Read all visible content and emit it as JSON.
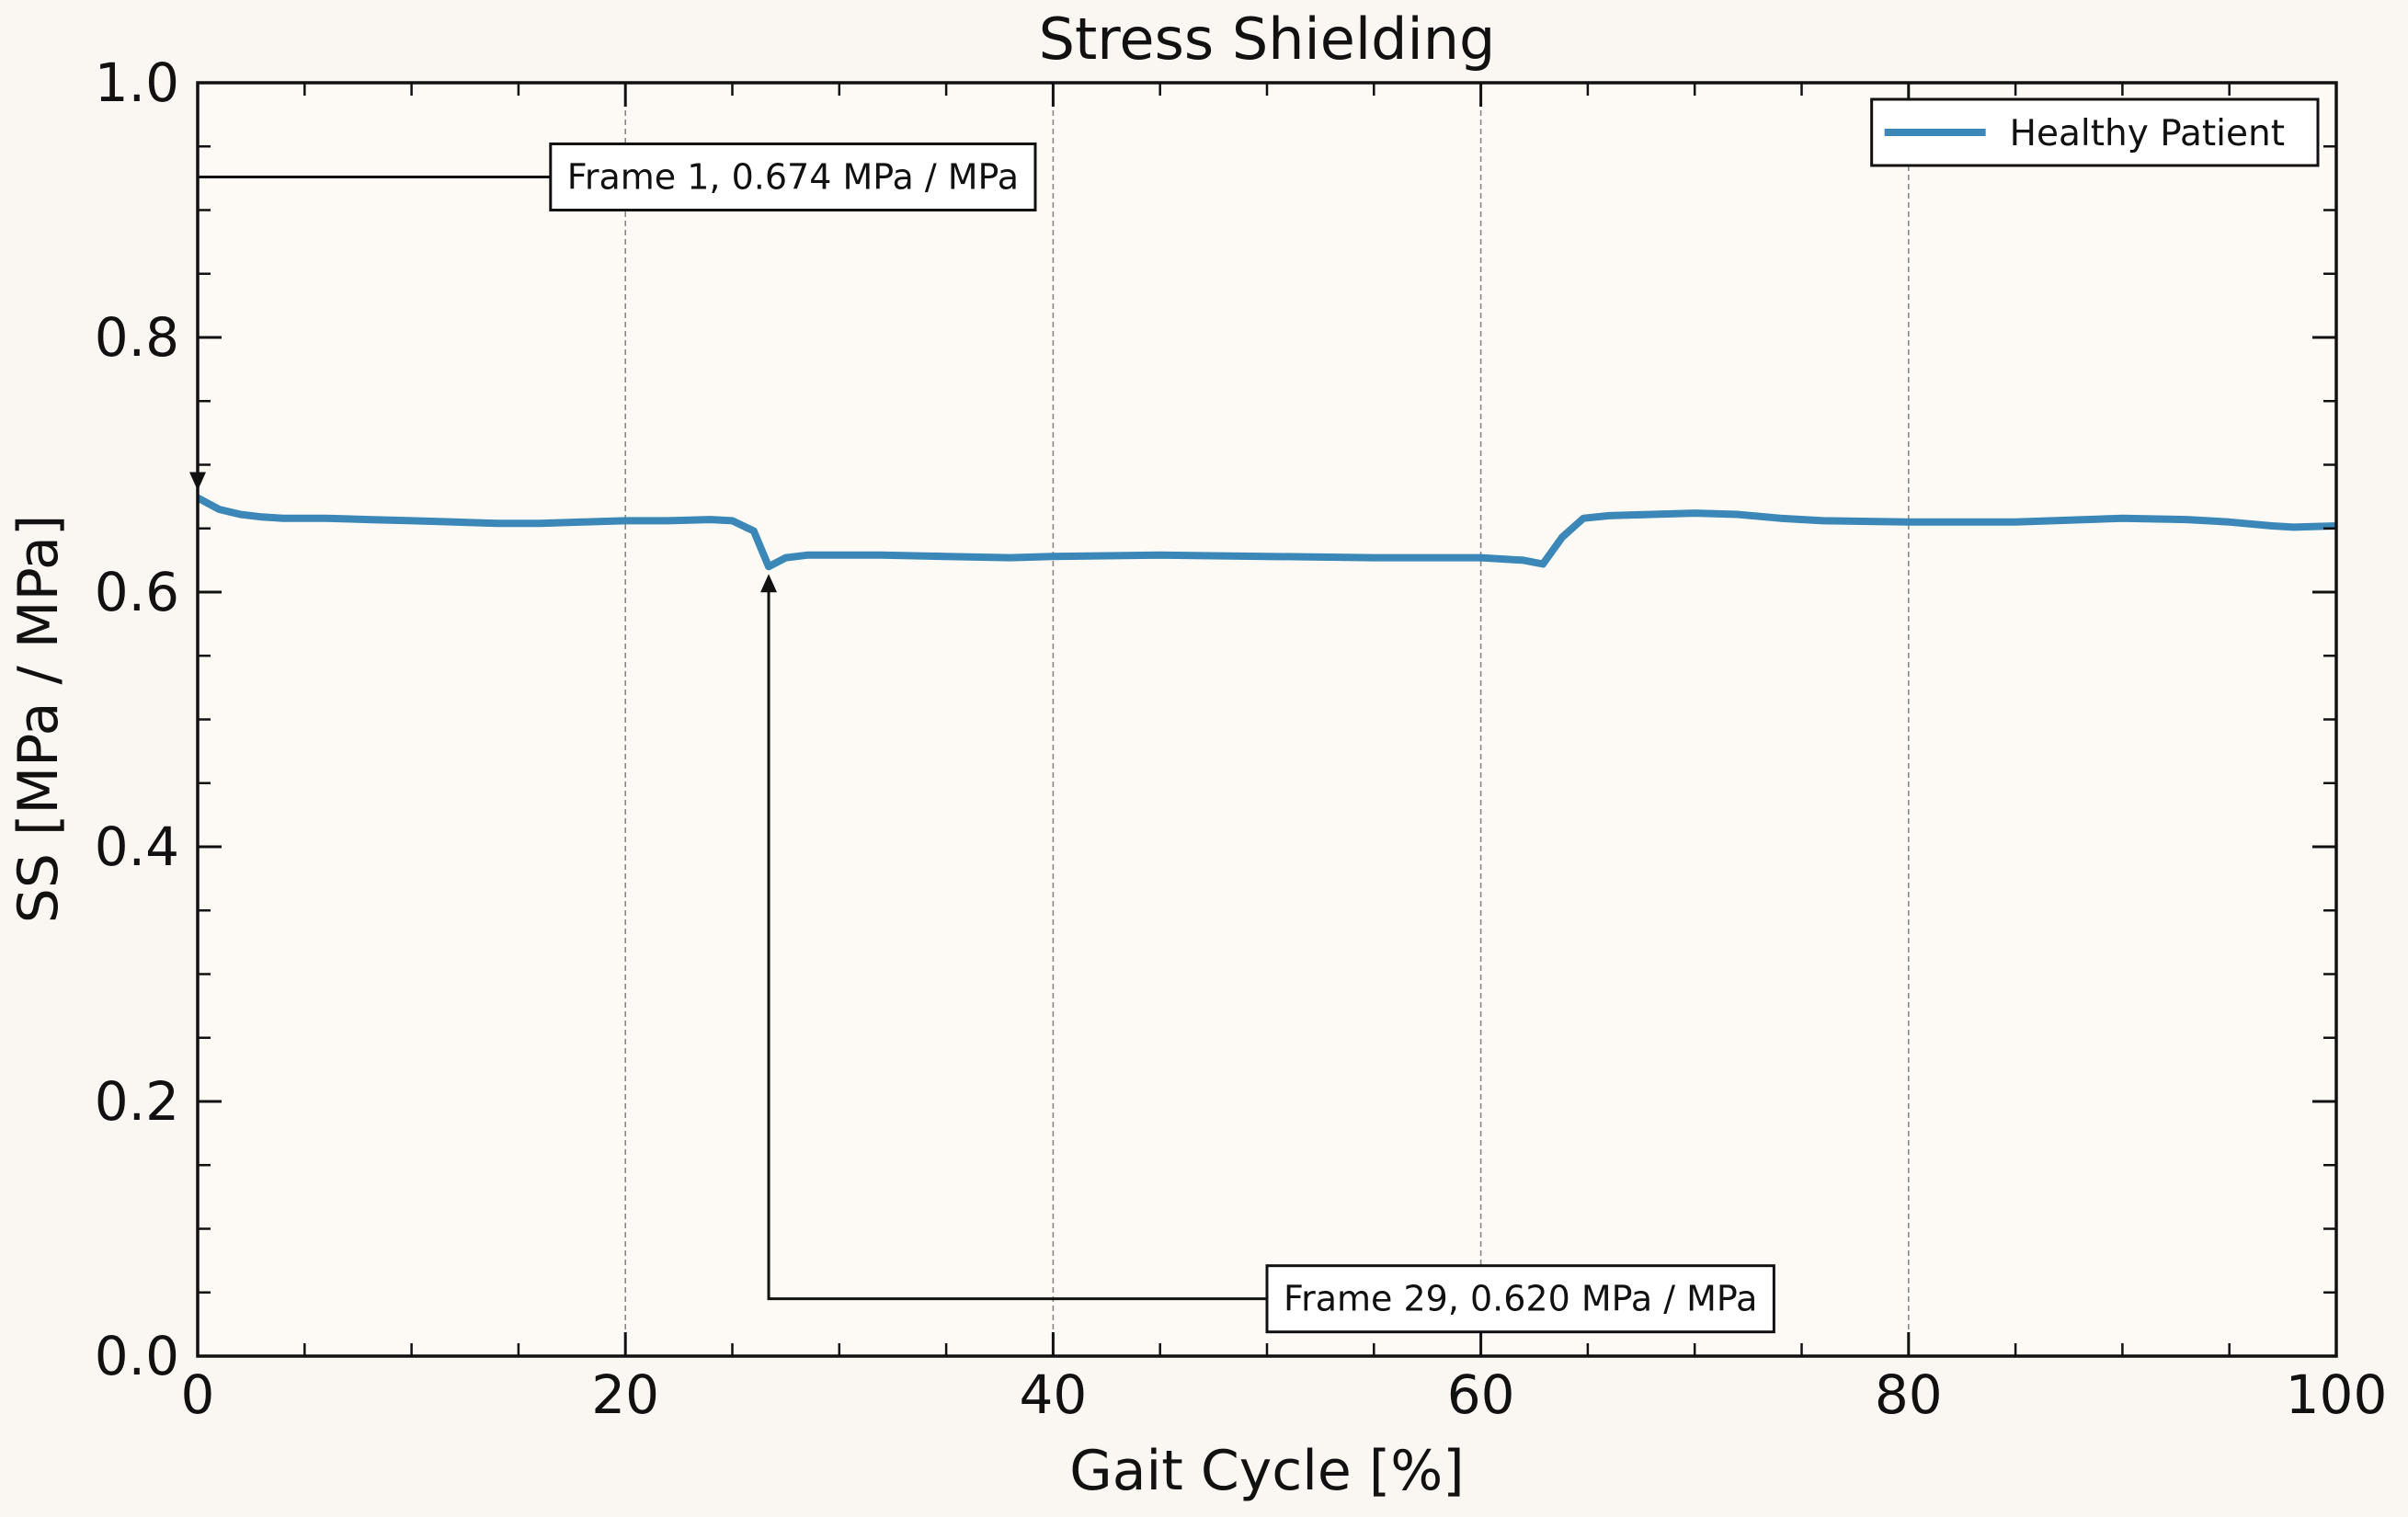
{
  "chart_data": {
    "type": "line",
    "title": "Stress Shielding",
    "xlabel": "Gait Cycle [%]",
    "ylabel": "SS [MPa / MPa]",
    "xlim": [
      0,
      100
    ],
    "ylim": [
      0,
      1.0
    ],
    "x_ticks": [
      "0",
      "20",
      "40",
      "60",
      "80",
      "100"
    ],
    "y_ticks": [
      "0.0",
      "0.2",
      "0.4",
      "0.6",
      "0.8",
      "1.0"
    ],
    "grid": "vertical dashed lines at major x ticks",
    "legend": {
      "position": "top-right",
      "entries": [
        "Healthy Patient"
      ]
    },
    "colors": {
      "series": "#3a87b8",
      "background": "#fdfaf5",
      "page": "#faf6f1"
    },
    "series": [
      {
        "name": "Healthy Patient",
        "x": [
          0,
          1,
          2,
          3,
          4,
          6,
          8,
          10,
          12,
          14,
          16,
          18,
          20,
          22,
          24,
          25,
          26,
          26.7,
          27.5,
          28.5,
          30,
          32,
          35,
          38,
          40,
          45,
          50,
          55,
          60,
          62,
          62.9,
          63.8,
          64.8,
          66,
          68,
          70,
          72,
          74,
          76,
          80,
          85,
          90,
          93,
          95,
          97,
          98,
          100
        ],
        "y": [
          0.674,
          0.665,
          0.661,
          0.659,
          0.658,
          0.658,
          0.657,
          0.656,
          0.655,
          0.654,
          0.654,
          0.655,
          0.656,
          0.656,
          0.657,
          0.656,
          0.648,
          0.62,
          0.627,
          0.629,
          0.629,
          0.629,
          0.628,
          0.627,
          0.628,
          0.629,
          0.628,
          0.627,
          0.627,
          0.625,
          0.622,
          0.643,
          0.658,
          0.66,
          0.661,
          0.662,
          0.661,
          0.658,
          0.656,
          0.655,
          0.655,
          0.658,
          0.657,
          0.655,
          0.652,
          0.651,
          0.652
        ]
      }
    ],
    "annotations": [
      {
        "text": "Frame 1, 0.674 MPa / MPa",
        "x": 0,
        "y": 0.674,
        "text_x": 16.5,
        "text_y": 0.926
      },
      {
        "text": "Frame 29, 0.620 MPa / MPa",
        "x": 26.7,
        "y": 0.62,
        "text_x": 50,
        "text_y": 0.045
      }
    ]
  }
}
